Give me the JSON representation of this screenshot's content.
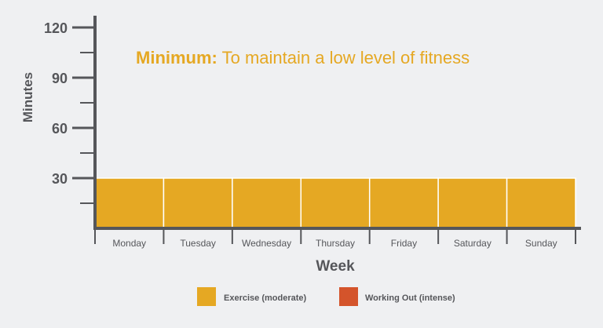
{
  "chart_data": {
    "type": "bar",
    "title_bold": "Minimum:",
    "title_rest": " To maintain a low level of fitness",
    "xlabel": "Week",
    "ylabel": "Minutes",
    "categories": [
      "Monday",
      "Tuesday",
      "Wednesday",
      "Thursday",
      "Friday",
      "Saturday",
      "Sunday"
    ],
    "series": [
      {
        "name": "Exercise (moderate)",
        "color": "#e5a823",
        "values": [
          30,
          30,
          30,
          30,
          30,
          30,
          30
        ]
      },
      {
        "name": "Working Out (intense)",
        "color": "#d4542b",
        "values": [
          0,
          0,
          0,
          0,
          0,
          0,
          0
        ]
      }
    ],
    "ylim": [
      0,
      120
    ],
    "yticks_labeled": [
      30,
      60,
      90,
      120
    ],
    "yticks_minor": [
      15,
      45,
      75,
      105
    ],
    "grid": false,
    "legend_position": "bottom"
  },
  "colors": {
    "axis": "#55565a",
    "title_accent": "#e5a823",
    "background": "#eff0f2"
  }
}
